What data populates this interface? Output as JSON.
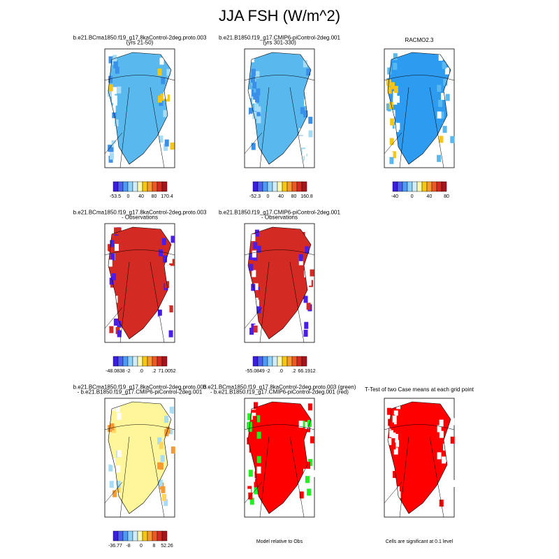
{
  "title": "JJA FSH (W/m^2)",
  "panels": [
    {
      "title": [
        "b.e21.BCma1850.f19_g17.8kaControl-2deg.proto.003",
        "(yrs 21-50)"
      ],
      "colorbar_labels": [
        "-53.5",
        "0",
        "40",
        "80",
        "170.4"
      ]
    },
    {
      "title": [
        "b.e21.B1850.f19_g17.CMIP6-piControl-2deg.001",
        "(yrs 301-330)"
      ],
      "colorbar_labels": [
        "-52.3",
        "0",
        "40",
        "80",
        "160.8"
      ]
    },
    {
      "title": [
        "RACMO2.3"
      ],
      "colorbar_labels": [
        "-40",
        "0",
        "40",
        "80"
      ]
    },
    {
      "title": [
        "b.e21.BCma1850.f19_g17.8kaControl-2deg.proto.003",
        "- Observations"
      ],
      "colorbar_labels": [
        "-48.0838",
        "-2",
        ".0",
        ".2",
        "71.0052"
      ]
    },
    {
      "title": [
        "b.e21.B1850.f19_g17.CMIP6-piControl-2deg.001",
        "- Observations"
      ],
      "colorbar_labels": [
        "-55.0849",
        "-2",
        ".0",
        ".2",
        "66.1912"
      ]
    },
    {
      "title": [
        "b.e21.BCma1850.f19_g17.8kaControl-2deg.proto.003",
        "- b.e21.B1850.f19_g17.CMIP6-piControl-2deg.001"
      ],
      "colorbar_labels": [
        "-36.77",
        "-8",
        "0",
        "8",
        "52.26"
      ]
    },
    {
      "title": [
        "b.e21.BCma1850.f19_g17.8kaControl-2deg.proto.003 (green)",
        "- b.e21.B1850.f19_g17.CMIP6-piControl-2deg.001 (red)"
      ],
      "footer": "Model relative to Obs"
    },
    {
      "title": [
        "T-Test of two Case means at each grid point"
      ],
      "footer": "Cells are significant at 0.1 level"
    }
  ]
}
